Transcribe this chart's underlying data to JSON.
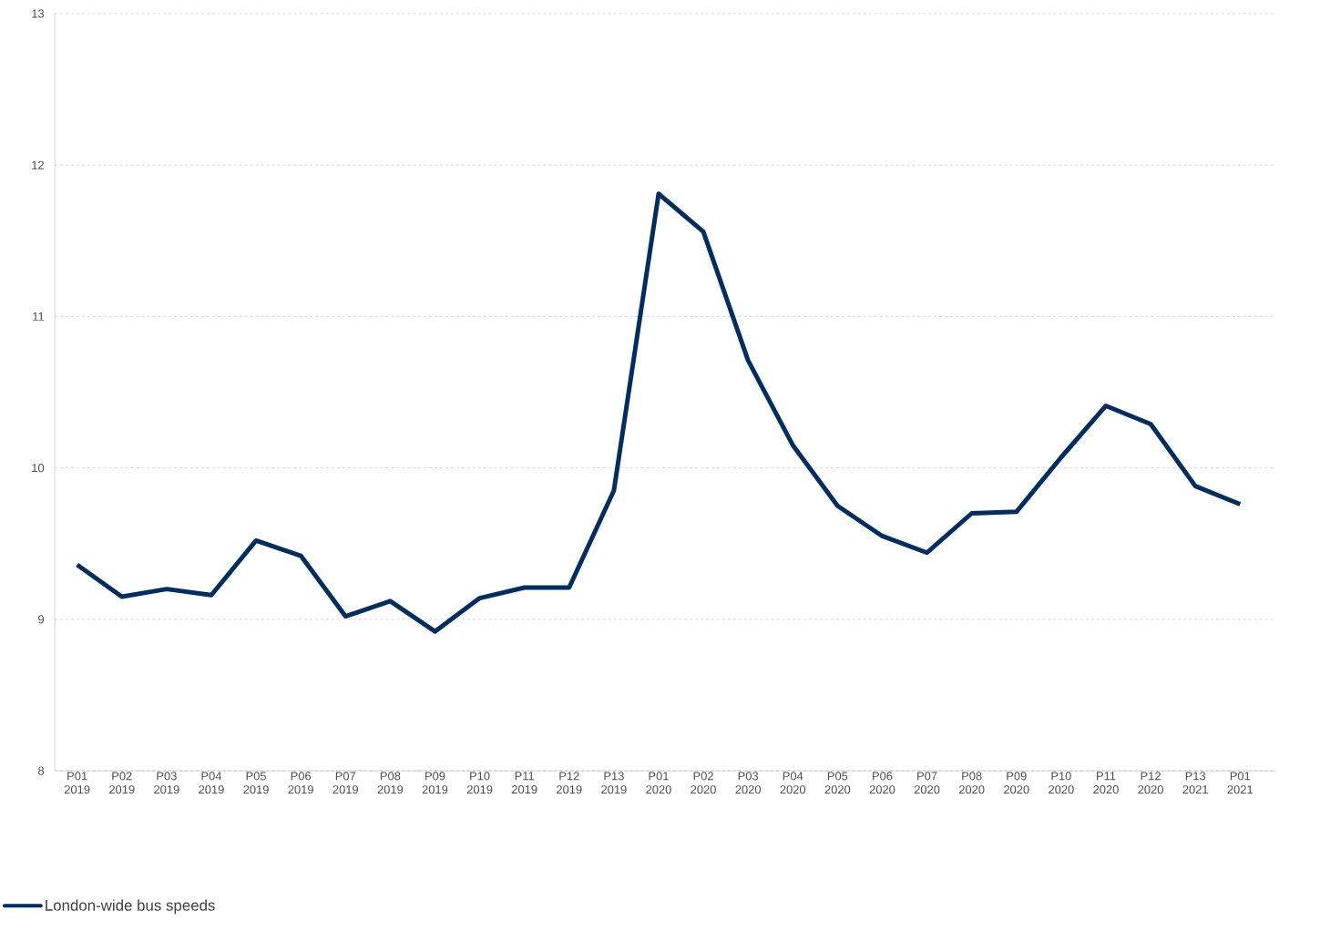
{
  "chart_data": {
    "type": "line",
    "categories": [
      "P01 2019",
      "P02 2019",
      "P03 2019",
      "P04 2019",
      "P05 2019",
      "P06 2019",
      "P07 2019",
      "P08 2019",
      "P09 2019",
      "P10 2019",
      "P11 2019",
      "P12 2019",
      "P13 2019",
      "P01 2020",
      "P02 2020",
      "P03 2020",
      "P04 2020",
      "P05 2020",
      "P06 2020",
      "P07 2020",
      "P08 2020",
      "P09 2020",
      "P10 2020",
      "P11 2020",
      "P12 2020",
      "P13 2021",
      "P01 2021"
    ],
    "series": [
      {
        "name": "London-wide bus speeds",
        "color": "#002d62",
        "values": [
          9.36,
          9.15,
          9.2,
          9.16,
          9.52,
          9.42,
          9.02,
          9.12,
          8.92,
          9.14,
          9.21,
          9.21,
          9.85,
          11.81,
          11.56,
          10.71,
          10.15,
          9.75,
          9.55,
          9.44,
          9.7,
          9.71,
          10.07,
          10.41,
          10.29,
          9.88,
          9.76
        ]
      }
    ],
    "ylim": [
      8,
      13
    ],
    "yticks": [
      8,
      9,
      10,
      11,
      12,
      13
    ],
    "grid": "y",
    "legend": "bottom left",
    "marker": "none",
    "line_style": "solid"
  }
}
